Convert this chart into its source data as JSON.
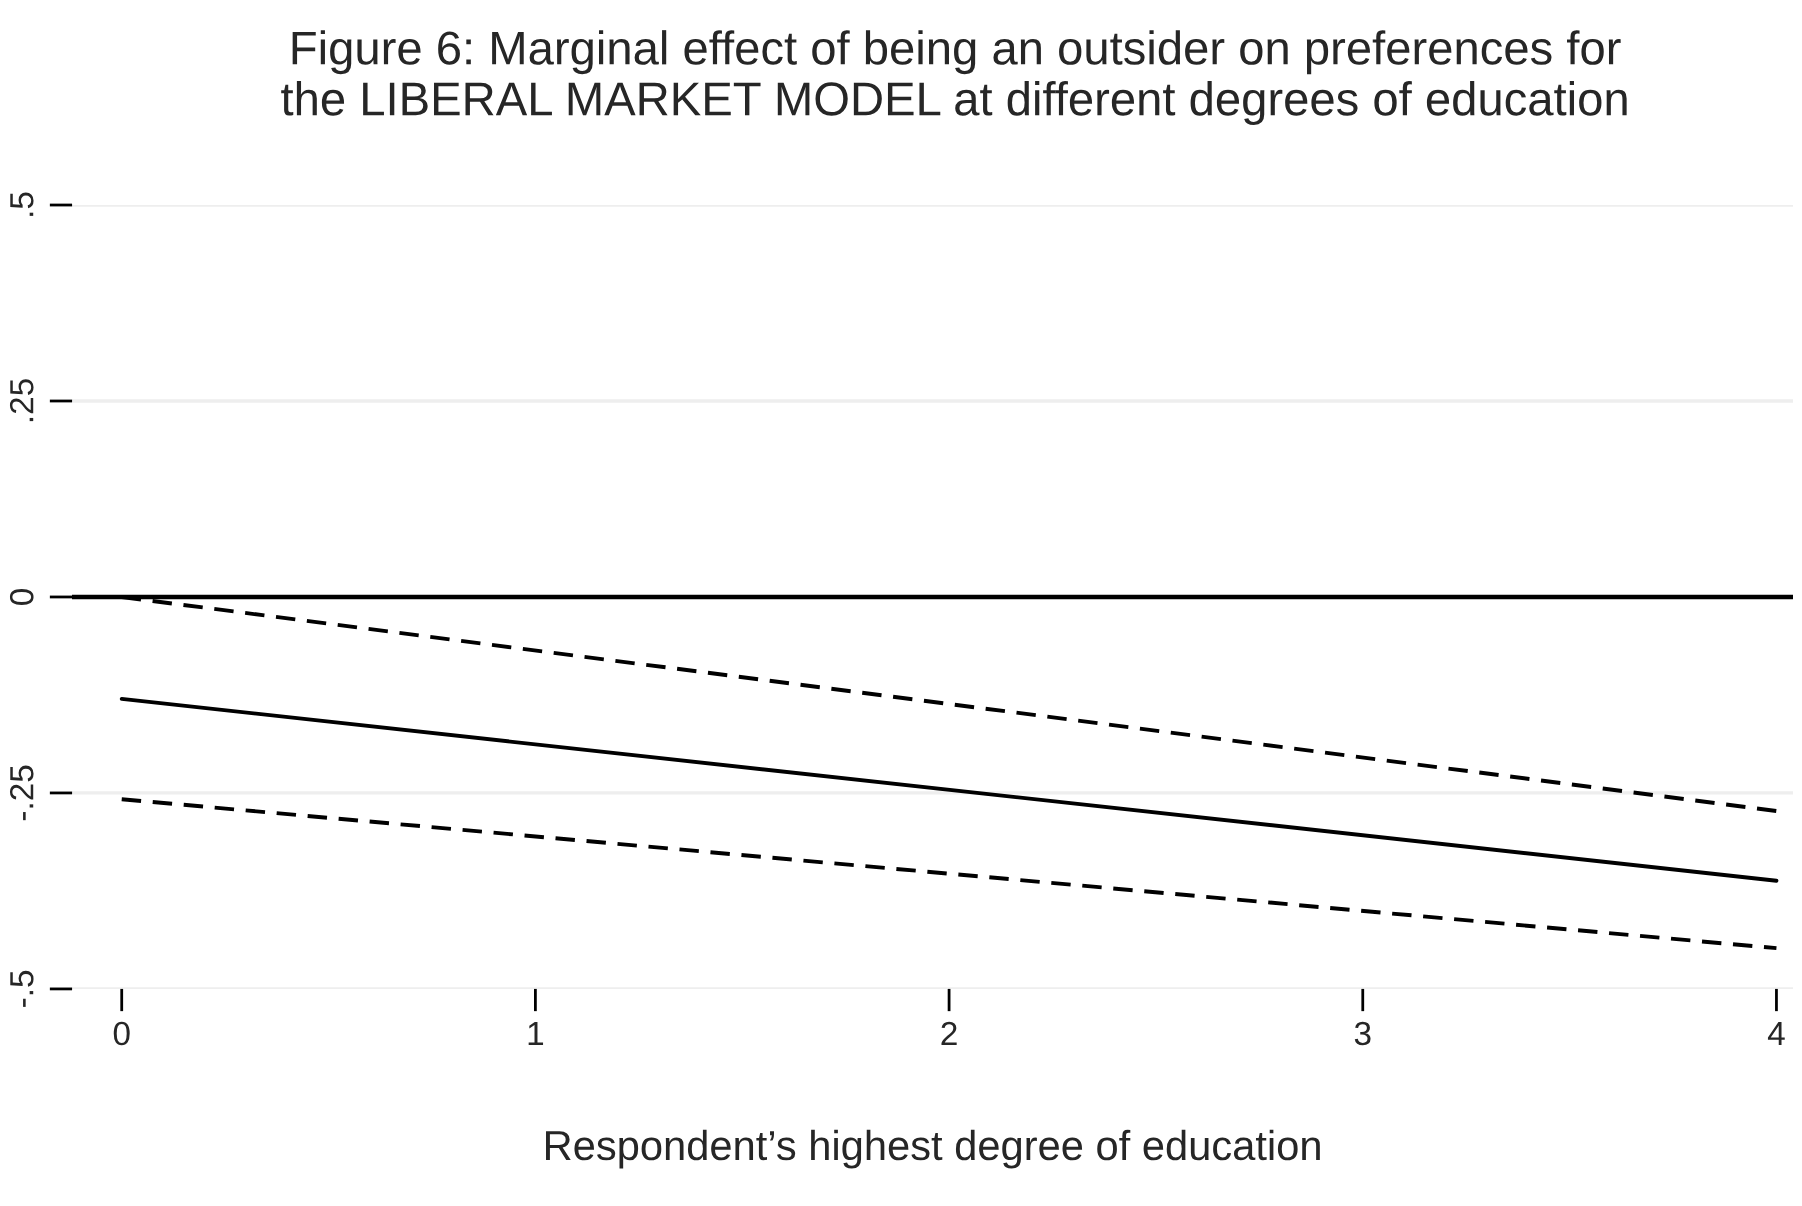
{
  "chart_data": {
    "type": "line",
    "title": "Figure 6: Marginal effect of being an outsider on preferences for\nthe LIBERAL MARKET MODEL at different degrees of education",
    "xlabel": "Respondent’s highest degree of education",
    "x": [
      0,
      4
    ],
    "series": [
      {
        "color": "#000000",
        "values": [
          -0.13,
          -0.362
        ],
        "line_style": "solid"
      },
      {
        "color": "#000000",
        "values": [
          0.0,
          -0.273
        ],
        "line_style": "dashed"
      },
      {
        "color": "#000000",
        "values": [
          -0.258,
          -0.448
        ],
        "line_style": "dashed"
      }
    ],
    "xlim": [
      -0.12,
      4.04
    ],
    "xticks": [
      0,
      1,
      2,
      3,
      4
    ],
    "ylim": [
      -0.5,
      0.5
    ],
    "yticks": [
      {
        "value": -0.5,
        "label": "-.5"
      },
      {
        "value": -0.25,
        "label": "-.25"
      },
      0,
      {
        "value": 0.25,
        "label": ".25"
      },
      {
        "value": 0.5,
        "label": ".5"
      }
    ],
    "grid": "y",
    "ref_lines": [
      {
        "axis": "y",
        "value": 0,
        "color": "#000000"
      }
    ]
  }
}
